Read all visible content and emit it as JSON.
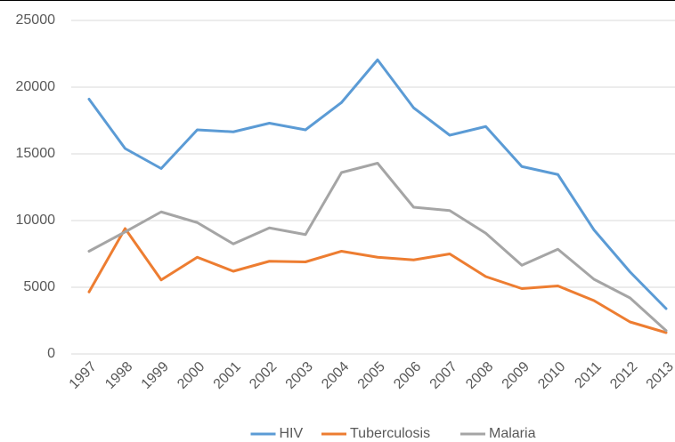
{
  "chart_data": {
    "type": "line",
    "categories": [
      "1997",
      "1998",
      "1999",
      "2000",
      "2001",
      "2002",
      "2003",
      "2004",
      "2005",
      "2006",
      "2007",
      "2008",
      "2009",
      "2010",
      "2011",
      "2012",
      "2013"
    ],
    "series": [
      {
        "name": "HIV",
        "color": "#5b9bd5",
        "values": [
          19100,
          15400,
          13900,
          16800,
          16650,
          17300,
          16800,
          18850,
          22050,
          18450,
          16400,
          17050,
          14050,
          13450,
          9300,
          6150,
          3400
        ]
      },
      {
        "name": "Tuberculosis",
        "color": "#ed7d31",
        "values": [
          4650,
          9400,
          5550,
          7250,
          6200,
          6950,
          6900,
          7700,
          7250,
          7050,
          7500,
          5800,
          4900,
          5100,
          4000,
          2400,
          1600
        ]
      },
      {
        "name": "Malaria",
        "color": "#a5a5a5",
        "values": [
          7700,
          9150,
          10650,
          9850,
          8250,
          9450,
          8950,
          13600,
          14300,
          11000,
          10750,
          9050,
          6650,
          7850,
          5600,
          4200,
          1750
        ]
      }
    ],
    "ylim": [
      0,
      25000
    ],
    "yticks": [
      0,
      5000,
      10000,
      15000,
      20000,
      25000
    ],
    "grid": true,
    "legend": "bottom"
  }
}
